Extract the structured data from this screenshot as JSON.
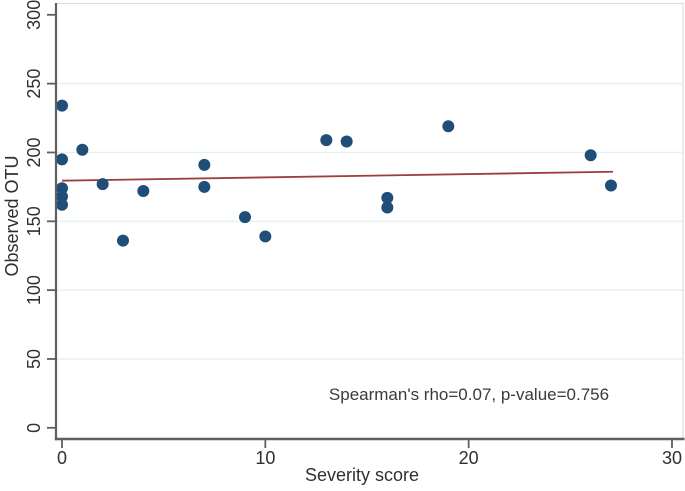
{
  "figure": {
    "type_label": "scatter-plot-figure"
  },
  "chart_data": {
    "type": "scatter",
    "title": "",
    "xlabel": "Severity score",
    "ylabel": "Observed OTU",
    "annotation": "Spearman's rho=0.07, p-value=0.756",
    "xlim": [
      0,
      30
    ],
    "ylim": [
      0,
      300
    ],
    "x_ticks": [
      0,
      10,
      20,
      30
    ],
    "y_ticks": [
      0,
      50,
      100,
      150,
      200,
      250,
      300
    ],
    "grid": "horizontal-only",
    "legend": "none",
    "points": [
      {
        "x": 0,
        "y": 234
      },
      {
        "x": 0,
        "y": 195
      },
      {
        "x": 0,
        "y": 174
      },
      {
        "x": 0,
        "y": 168
      },
      {
        "x": 0,
        "y": 162
      },
      {
        "x": 1,
        "y": 202
      },
      {
        "x": 2,
        "y": 177
      },
      {
        "x": 3,
        "y": 136
      },
      {
        "x": 4,
        "y": 172
      },
      {
        "x": 7,
        "y": 191
      },
      {
        "x": 7,
        "y": 175
      },
      {
        "x": 9,
        "y": 153
      },
      {
        "x": 10,
        "y": 139
      },
      {
        "x": 13,
        "y": 209
      },
      {
        "x": 14,
        "y": 208
      },
      {
        "x": 16,
        "y": 167
      },
      {
        "x": 16,
        "y": 160
      },
      {
        "x": 19,
        "y": 219
      },
      {
        "x": 26,
        "y": 198
      },
      {
        "x": 27,
        "y": 176
      }
    ],
    "trend_line": {
      "x_start": 0,
      "y_start": 179.5,
      "x_end": 27.1,
      "y_end": 186,
      "kind": "linear-fit"
    },
    "colors": {
      "point": "#1f4e79",
      "trend": "#9b3e3e",
      "grid": "#e8f1f2",
      "axis": "#5f5f5f",
      "border": "#d9dee1",
      "text": "#303030"
    }
  }
}
